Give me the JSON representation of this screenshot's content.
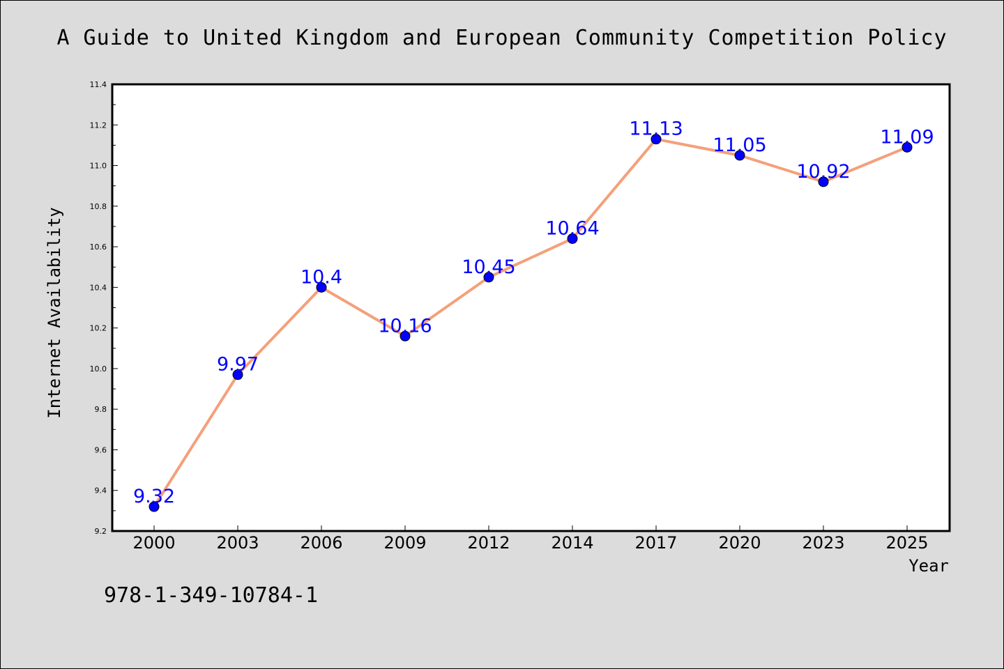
{
  "chart_data": {
    "type": "line",
    "title": "A Guide to United Kingdom and European Community Competition Policy",
    "xlabel": "Year",
    "ylabel": "Internet Availability",
    "categories": [
      "2000",
      "2003",
      "2006",
      "2009",
      "2012",
      "2014",
      "2017",
      "2020",
      "2023",
      "2025"
    ],
    "series": [
      {
        "values": [
          9.32,
          9.97,
          10.4,
          10.16,
          10.45,
          10.64,
          11.13,
          11.05,
          10.92,
          11.09
        ],
        "value_labels": [
          "9.32",
          "9.97",
          "10.4",
          "10.16",
          "10.45",
          "10.64",
          "11.13",
          "11.05",
          "10.92",
          "11.09"
        ],
        "line_color": "#f4a07a",
        "marker_color": "#0000ff",
        "label_color": "#0000ff"
      }
    ],
    "ylim": [
      9.2,
      11.4
    ],
    "yticks": [
      "9.2",
      "9.4",
      "9.6",
      "9.8",
      "10.0",
      "10.2",
      "10.4",
      "10.6",
      "10.8",
      "11.0",
      "11.2",
      "11.4"
    ],
    "grid": false,
    "legend": "none"
  },
  "footnote": "978-1-349-10784-1",
  "colors": {
    "background": "#dcdcdc",
    "plot_area": "#ffffff",
    "axis": "#000000",
    "text": "#000000"
  }
}
